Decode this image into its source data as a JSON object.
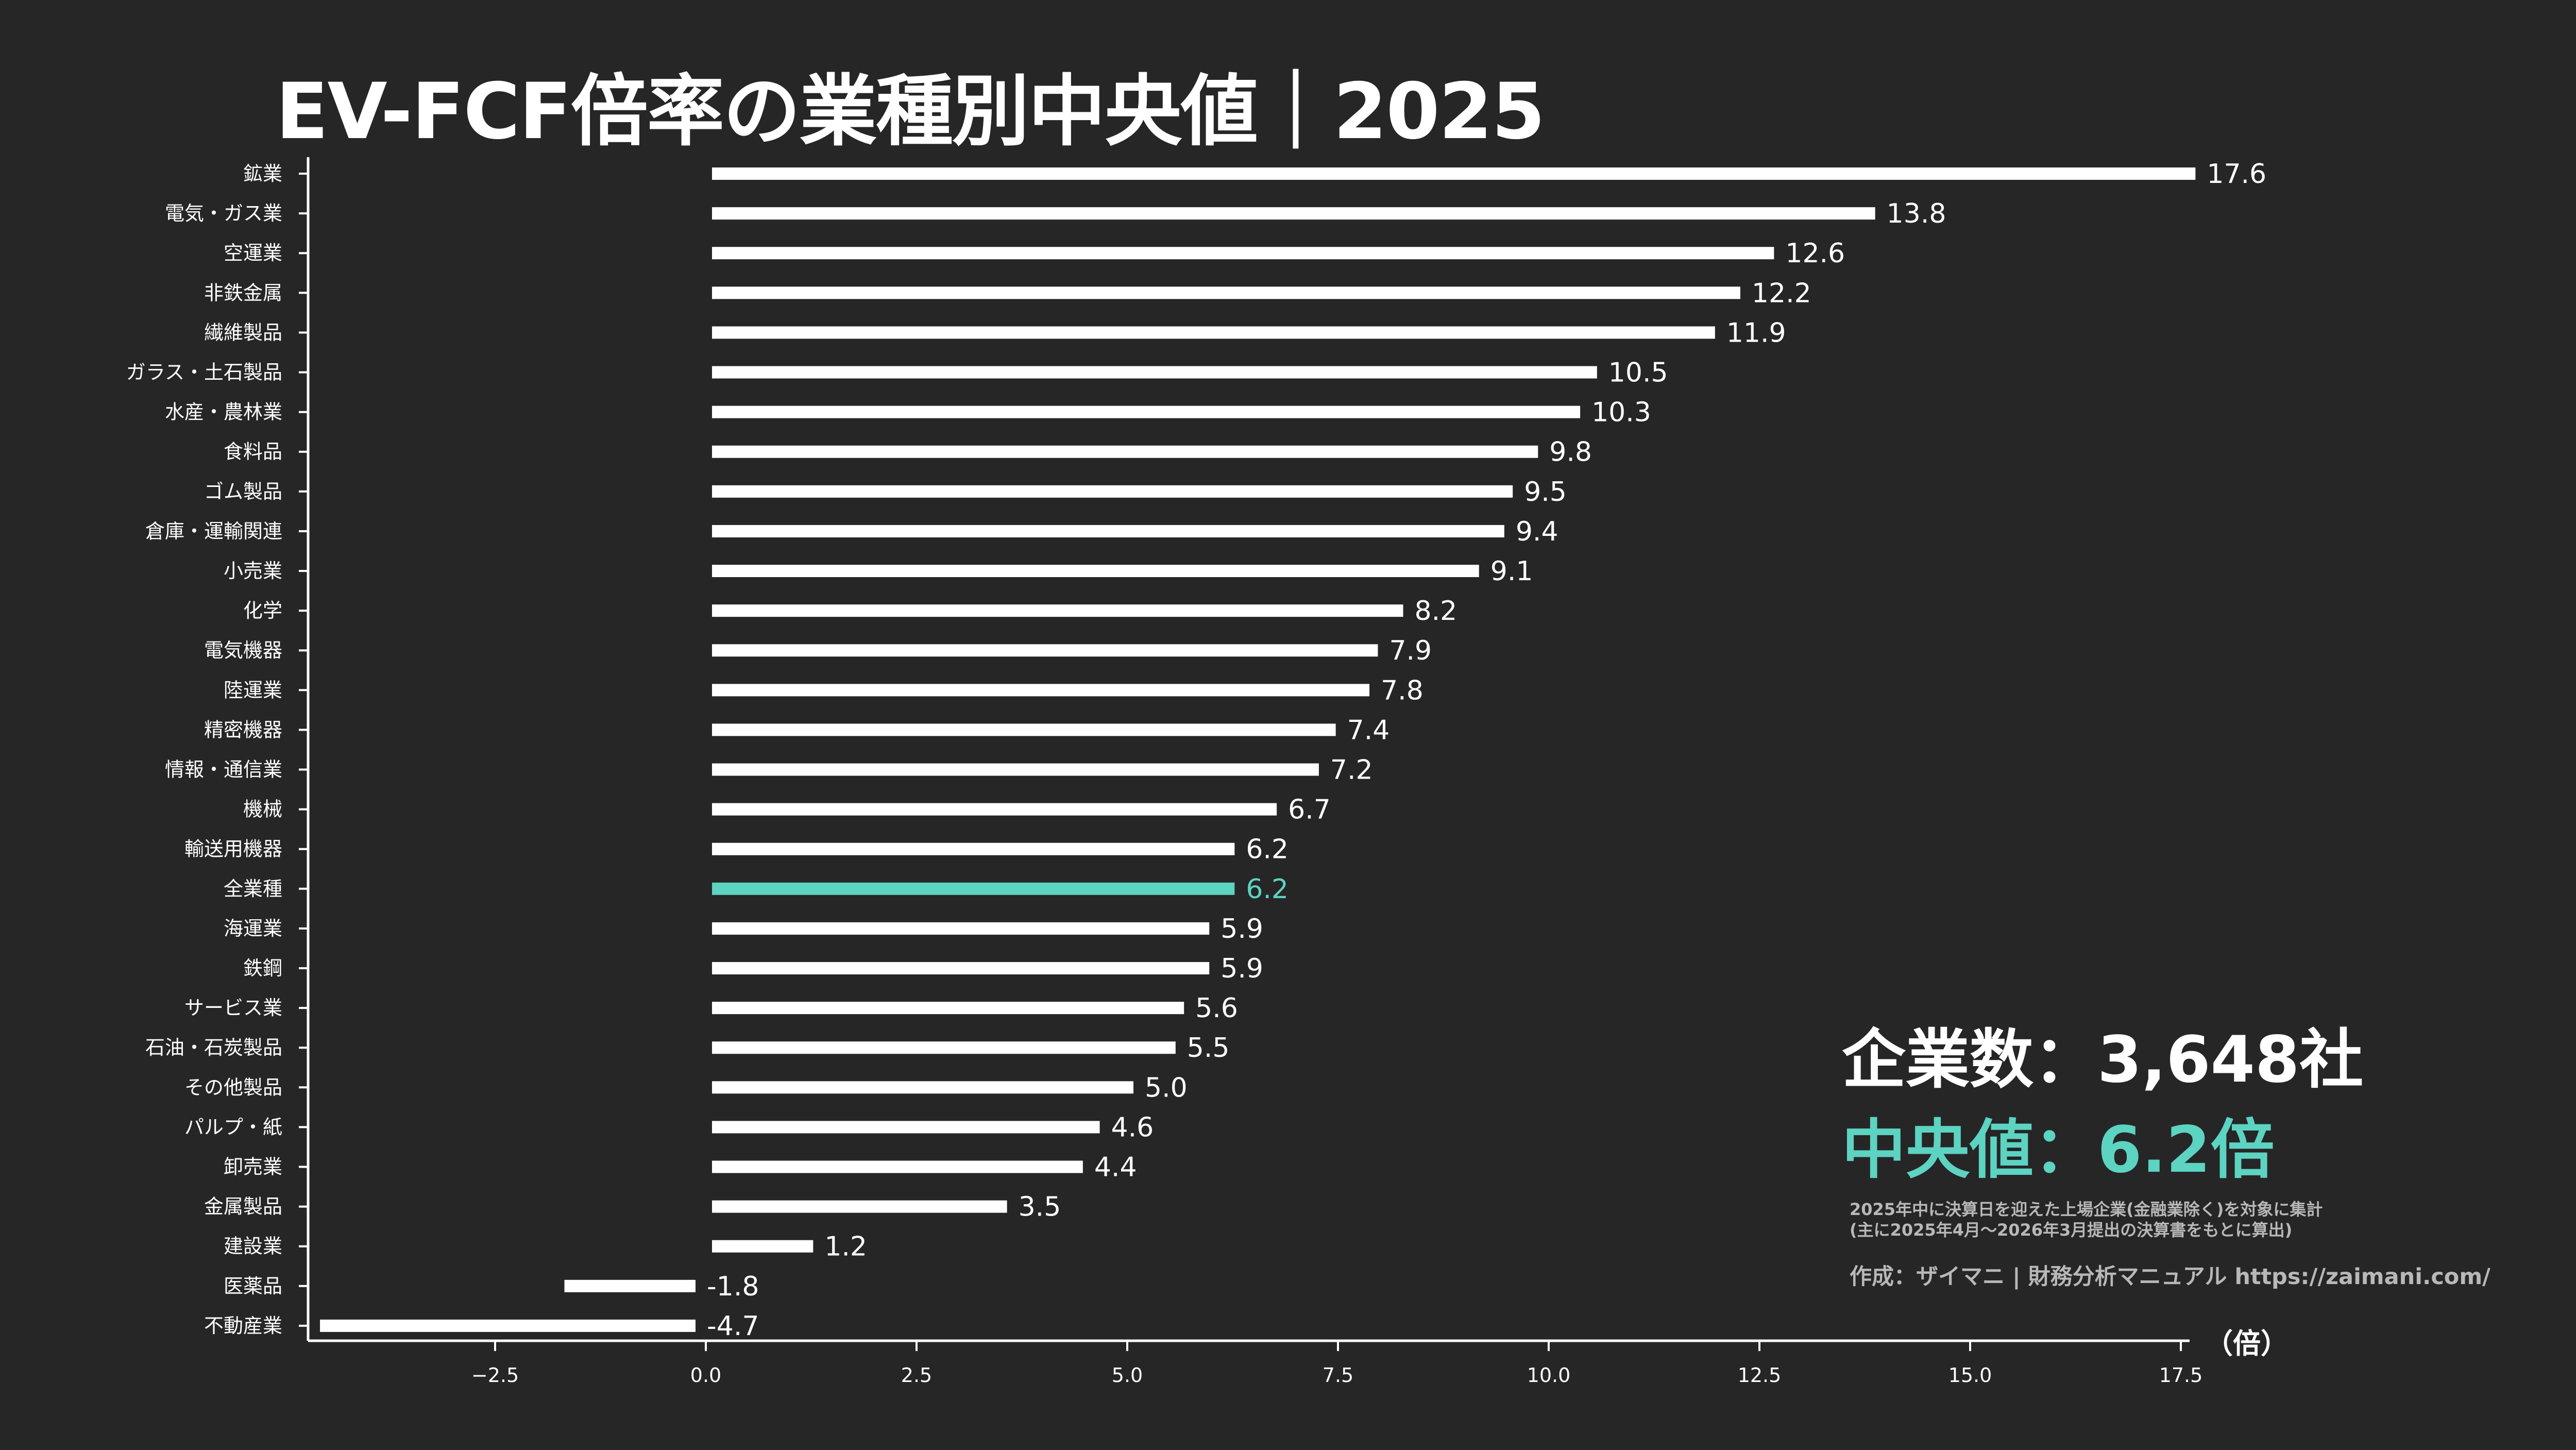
{
  "title": "EV-FCF倍率の業種別中央値｜2025",
  "summary": {
    "company_count": "企業数：3,648社",
    "median": "中央値：6.2倍",
    "note_line1": "2025年中に決算日を迎えた上場企業(金融業除く)を対象に集計",
    "note_line2": "(主に2025年4月〜2026年3月提出の決算書をもとに算出)",
    "credit": "作成：ザイマニ | 財務分析マニュアル https://zaimani.com/"
  },
  "colors": {
    "background": "#262626",
    "bar": "#ffffff",
    "highlight": "#5dd3c2",
    "text": "#ffffff"
  },
  "chart_data": {
    "type": "bar",
    "orientation": "horizontal",
    "title": "EV-FCF倍率の業種別中央値｜2025",
    "xlabel": "（倍）",
    "ylabel": "",
    "xlim": [
      -4.7,
      17.6
    ],
    "xticks": [
      -2.5,
      0.0,
      2.5,
      5.0,
      7.5,
      10.0,
      12.5,
      15.0,
      17.5
    ],
    "xtick_labels": [
      "−2.5",
      "0.0",
      "2.5",
      "5.0",
      "7.5",
      "10.0",
      "12.5",
      "15.0",
      "17.5"
    ],
    "grid": false,
    "highlight_category": "全業種",
    "categories": [
      "鉱業",
      "電気・ガス業",
      "空運業",
      "非鉄金属",
      "繊維製品",
      "ガラス・土石製品",
      "水産・農林業",
      "食料品",
      "ゴム製品",
      "倉庫・運輸関連",
      "小売業",
      "化学",
      "電気機器",
      "陸運業",
      "精密機器",
      "情報・通信業",
      "機械",
      "輸送用機器",
      "全業種",
      "海運業",
      "鉄鋼",
      "サービス業",
      "石油・石炭製品",
      "その他製品",
      "パルプ・紙",
      "卸売業",
      "金属製品",
      "建設業",
      "医薬品",
      "不動産業"
    ],
    "values": [
      17.6,
      13.8,
      12.6,
      12.2,
      11.9,
      10.5,
      10.3,
      9.8,
      9.5,
      9.4,
      9.1,
      8.2,
      7.9,
      7.8,
      7.4,
      7.2,
      6.7,
      6.2,
      6.2,
      5.9,
      5.9,
      5.6,
      5.5,
      5.0,
      4.6,
      4.4,
      3.5,
      1.2,
      -1.8,
      -4.7
    ],
    "value_labels": [
      "17.6",
      "13.8",
      "12.6",
      "12.2",
      "11.9",
      "10.5",
      "10.3",
      "9.8",
      "9.5",
      "9.4",
      "9.1",
      "8.2",
      "7.9",
      "7.8",
      "7.4",
      "7.2",
      "6.7",
      "6.2",
      "6.2",
      "5.9",
      "5.9",
      "5.6",
      "5.5",
      "5.0",
      "4.6",
      "4.4",
      "3.5",
      "1.2",
      "-1.8",
      "-4.7"
    ]
  }
}
